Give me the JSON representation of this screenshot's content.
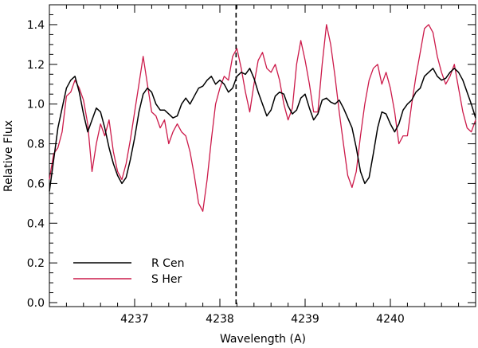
{
  "chart_data": {
    "type": "line",
    "title": "",
    "xlabel": "Wavelength (A)",
    "ylabel": "Relative Flux",
    "xlim": [
      4236.0,
      4241.0
    ],
    "ylim": [
      -0.02,
      1.5
    ],
    "xticks": [
      4237,
      4238,
      4239,
      4240
    ],
    "yticks": [
      0.0,
      0.2,
      0.4,
      0.6,
      0.8,
      1.0,
      1.2,
      1.4
    ],
    "yticklabels": [
      "0.0",
      "0.2",
      "0.4",
      "0.6",
      "0.8",
      "1.0",
      "1.2",
      "1.4"
    ],
    "grid": false,
    "legend_position": "bottom-left",
    "vline": {
      "x": 4238.19,
      "style": "dashed",
      "color": "#000000"
    },
    "series": [
      {
        "name": "R Cen",
        "color": "#000000",
        "x": [
          4236.0,
          4236.05,
          4236.1,
          4236.15,
          4236.2,
          4236.25,
          4236.3,
          4236.35,
          4236.4,
          4236.45,
          4236.5,
          4236.55,
          4236.6,
          4236.65,
          4236.7,
          4236.75,
          4236.8,
          4236.85,
          4236.9,
          4236.95,
          4237.0,
          4237.05,
          4237.1,
          4237.15,
          4237.2,
          4237.25,
          4237.3,
          4237.35,
          4237.4,
          4237.45,
          4237.5,
          4237.55,
          4237.6,
          4237.65,
          4237.7,
          4237.75,
          4237.8,
          4237.85,
          4237.9,
          4237.95,
          4238.0,
          4238.05,
          4238.1,
          4238.15,
          4238.2,
          4238.25,
          4238.3,
          4238.35,
          4238.4,
          4238.45,
          4238.5,
          4238.55,
          4238.6,
          4238.65,
          4238.7,
          4238.75,
          4238.8,
          4238.85,
          4238.9,
          4238.95,
          4239.0,
          4239.05,
          4239.1,
          4239.15,
          4239.2,
          4239.25,
          4239.3,
          4239.35,
          4239.4,
          4239.45,
          4239.5,
          4239.55,
          4239.6,
          4239.65,
          4239.7,
          4239.75,
          4239.8,
          4239.85,
          4239.9,
          4239.95,
          4240.0,
          4240.05,
          4240.1,
          4240.15,
          4240.2,
          4240.25,
          4240.3,
          4240.35,
          4240.4,
          4240.45,
          4240.5,
          4240.55,
          4240.6,
          4240.65,
          4240.7,
          4240.75,
          4240.8,
          4240.85,
          4240.9,
          4240.95,
          4241.0
        ],
        "y": [
          0.56,
          0.72,
          0.88,
          0.98,
          1.08,
          1.12,
          1.14,
          1.06,
          0.95,
          0.86,
          0.92,
          0.98,
          0.96,
          0.88,
          0.78,
          0.7,
          0.64,
          0.6,
          0.63,
          0.72,
          0.83,
          0.96,
          1.05,
          1.08,
          1.06,
          1.0,
          0.97,
          0.97,
          0.95,
          0.93,
          0.94,
          1.0,
          1.03,
          1.0,
          1.04,
          1.08,
          1.09,
          1.12,
          1.14,
          1.1,
          1.12,
          1.1,
          1.06,
          1.08,
          1.14,
          1.16,
          1.15,
          1.18,
          1.13,
          1.06,
          1.0,
          0.94,
          0.97,
          1.04,
          1.06,
          1.05,
          0.99,
          0.95,
          0.97,
          1.03,
          1.05,
          0.98,
          0.92,
          0.95,
          1.02,
          1.03,
          1.01,
          1.0,
          1.02,
          0.98,
          0.93,
          0.88,
          0.78,
          0.66,
          0.6,
          0.63,
          0.75,
          0.88,
          0.96,
          0.95,
          0.9,
          0.86,
          0.9,
          0.97,
          1.0,
          1.02,
          1.06,
          1.08,
          1.14,
          1.16,
          1.18,
          1.14,
          1.12,
          1.13,
          1.16,
          1.18,
          1.16,
          1.12,
          1.06,
          1.0,
          0.93
        ]
      },
      {
        "name": "S Her",
        "color": "#cc1a4a",
        "x": [
          4236.0,
          4236.05,
          4236.1,
          4236.15,
          4236.2,
          4236.25,
          4236.3,
          4236.35,
          4236.4,
          4236.45,
          4236.5,
          4236.55,
          4236.6,
          4236.65,
          4236.7,
          4236.75,
          4236.8,
          4236.85,
          4236.9,
          4236.95,
          4237.0,
          4237.05,
          4237.1,
          4237.15,
          4237.2,
          4237.25,
          4237.3,
          4237.35,
          4237.4,
          4237.45,
          4237.5,
          4237.55,
          4237.6,
          4237.65,
          4237.7,
          4237.75,
          4237.8,
          4237.85,
          4237.9,
          4237.95,
          4238.0,
          4238.05,
          4238.1,
          4238.15,
          4238.2,
          4238.25,
          4238.3,
          4238.35,
          4238.4,
          4238.45,
          4238.5,
          4238.55,
          4238.6,
          4238.65,
          4238.7,
          4238.75,
          4238.8,
          4238.85,
          4238.9,
          4238.95,
          4239.0,
          4239.05,
          4239.1,
          4239.15,
          4239.2,
          4239.25,
          4239.3,
          4239.35,
          4239.4,
          4239.45,
          4239.5,
          4239.55,
          4239.6,
          4239.65,
          4239.7,
          4239.75,
          4239.8,
          4239.85,
          4239.9,
          4239.95,
          4240.0,
          4240.05,
          4240.1,
          4240.15,
          4240.2,
          4240.25,
          4240.3,
          4240.35,
          4240.4,
          4240.45,
          4240.5,
          4240.55,
          4240.6,
          4240.65,
          4240.7,
          4240.75,
          4240.8,
          4240.85,
          4240.9,
          4240.95,
          4241.0
        ],
        "y": [
          0.62,
          0.75,
          0.78,
          0.86,
          1.04,
          1.06,
          1.12,
          1.08,
          1.02,
          0.9,
          0.66,
          0.8,
          0.9,
          0.84,
          0.92,
          0.76,
          0.66,
          0.62,
          0.7,
          0.82,
          0.96,
          1.1,
          1.24,
          1.1,
          0.96,
          0.94,
          0.88,
          0.92,
          0.8,
          0.86,
          0.9,
          0.86,
          0.84,
          0.76,
          0.64,
          0.5,
          0.46,
          0.62,
          0.82,
          1.0,
          1.08,
          1.14,
          1.12,
          1.24,
          1.28,
          1.18,
          1.06,
          0.96,
          1.1,
          1.22,
          1.26,
          1.18,
          1.16,
          1.2,
          1.12,
          1.0,
          0.92,
          0.98,
          1.2,
          1.32,
          1.22,
          1.1,
          0.96,
          0.96,
          1.2,
          1.4,
          1.3,
          1.14,
          0.96,
          0.8,
          0.64,
          0.58,
          0.66,
          0.84,
          1.0,
          1.12,
          1.18,
          1.2,
          1.1,
          1.16,
          1.08,
          0.96,
          0.8,
          0.84,
          0.84,
          1.0,
          1.14,
          1.26,
          1.38,
          1.4,
          1.36,
          1.24,
          1.16,
          1.1,
          1.14,
          1.2,
          1.08,
          0.96,
          0.88,
          0.86,
          0.92
        ]
      }
    ]
  }
}
